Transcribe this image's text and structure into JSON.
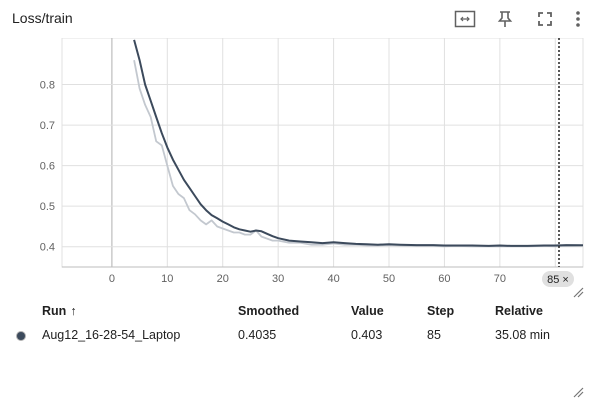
{
  "card": {
    "title": "Loss/train",
    "toolbar": [
      {
        "name": "fit-domain-icon",
        "tooltip": ""
      },
      {
        "name": "pin-icon",
        "tooltip": ""
      },
      {
        "name": "fullscreen-icon",
        "tooltip": ""
      },
      {
        "name": "more-vert-icon",
        "tooltip": ""
      }
    ]
  },
  "chart_data": {
    "type": "line",
    "title": "",
    "xlabel": "",
    "ylabel": "",
    "xlim": [
      -9,
      85
    ],
    "ylim": [
      0.35,
      0.9
    ],
    "xticks": [
      0,
      10,
      20,
      30,
      40,
      50,
      60,
      70,
      80
    ],
    "yticks": [
      0.4,
      0.5,
      0.6,
      0.7,
      0.8
    ],
    "grid": true,
    "cursor_step": 85,
    "cursor_label": "85 ×",
    "series": [
      {
        "style": "raw",
        "color": "#c3c8cf",
        "x": [
          4,
          5,
          6,
          7,
          8,
          9,
          10,
          11,
          12,
          13,
          14,
          15,
          16,
          17,
          18,
          19,
          20,
          21,
          22,
          23,
          24,
          25,
          26,
          27,
          28,
          29,
          30,
          32,
          34,
          36,
          38,
          40,
          42,
          44,
          46,
          48,
          50,
          52,
          55,
          58,
          60,
          62,
          65,
          68,
          70,
          72,
          75,
          78,
          80,
          82,
          85
        ],
        "y": [
          0.86,
          0.79,
          0.75,
          0.72,
          0.66,
          0.65,
          0.6,
          0.55,
          0.53,
          0.52,
          0.49,
          0.48,
          0.465,
          0.455,
          0.465,
          0.45,
          0.445,
          0.44,
          0.435,
          0.435,
          0.43,
          0.43,
          0.44,
          0.425,
          0.42,
          0.415,
          0.415,
          0.41,
          0.41,
          0.405,
          0.405,
          0.408,
          0.405,
          0.405,
          0.403,
          0.403,
          0.404,
          0.403,
          0.402,
          0.402,
          0.401,
          0.402,
          0.401,
          0.401,
          0.401,
          0.401,
          0.401,
          0.402,
          0.401,
          0.402,
          0.403
        ]
      },
      {
        "style": "smoothed",
        "color": "#3c4a5c",
        "x": [
          4,
          5,
          6,
          7,
          8,
          9,
          10,
          11,
          12,
          13,
          14,
          15,
          16,
          17,
          18,
          19,
          20,
          21,
          22,
          23,
          24,
          25,
          26,
          27,
          28,
          29,
          30,
          32,
          34,
          36,
          38,
          40,
          42,
          44,
          46,
          48,
          50,
          52,
          55,
          58,
          60,
          62,
          65,
          68,
          70,
          72,
          75,
          78,
          80,
          82,
          85
        ],
        "y": [
          0.91,
          0.86,
          0.8,
          0.76,
          0.72,
          0.68,
          0.645,
          0.615,
          0.59,
          0.565,
          0.545,
          0.525,
          0.505,
          0.49,
          0.478,
          0.47,
          0.462,
          0.455,
          0.448,
          0.443,
          0.44,
          0.437,
          0.44,
          0.438,
          0.432,
          0.426,
          0.421,
          0.415,
          0.413,
          0.411,
          0.409,
          0.411,
          0.409,
          0.407,
          0.406,
          0.405,
          0.406,
          0.405,
          0.404,
          0.404,
          0.403,
          0.403,
          0.403,
          0.402,
          0.403,
          0.402,
          0.402,
          0.403,
          0.403,
          0.404,
          0.4035
        ]
      }
    ]
  },
  "table": {
    "headers": {
      "run": "Run",
      "sort": "↑",
      "smoothed": "Smoothed",
      "value": "Value",
      "step": "Step",
      "relative": "Relative"
    },
    "rows": [
      {
        "run": "Aug12_16-28-54_Laptop",
        "color": "#3c4a5c",
        "smoothed": "0.4035",
        "value": "0.403",
        "step": "85",
        "relative": "35.08 min"
      }
    ]
  }
}
